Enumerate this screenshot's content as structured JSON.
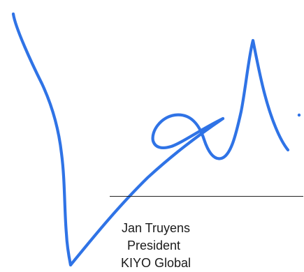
{
  "signature": {
    "kind": "handwritten-signature",
    "ink_color": "#2f73e6"
  },
  "signer": {
    "name": "Jan Truyens",
    "title": "President",
    "organization": "KIYO Global"
  },
  "colors": {
    "background": "#ffffff",
    "text": "#1a1a1a",
    "rule": "#222222"
  }
}
